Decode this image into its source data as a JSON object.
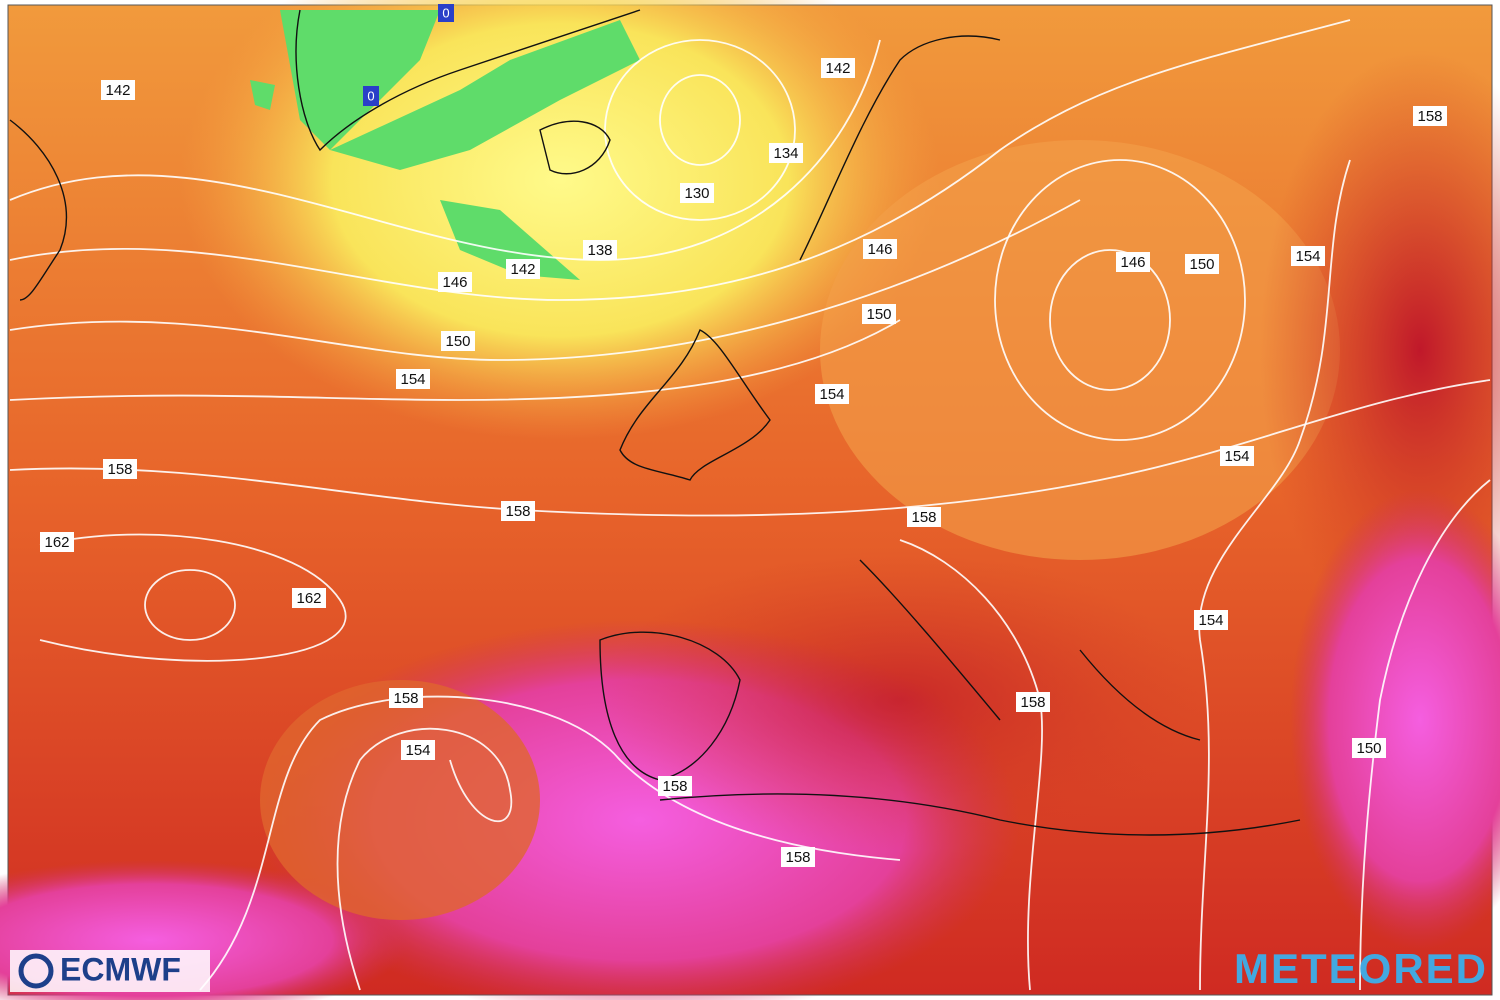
{
  "map": {
    "contour_labels": [
      142,
      142,
      158,
      134,
      130,
      146,
      138,
      142,
      146,
      146,
      150,
      154,
      150,
      150,
      154,
      154,
      154,
      158,
      158,
      158,
      162,
      162,
      154,
      158,
      158,
      154,
      150,
      158,
      158
    ],
    "low_markers": [
      "0",
      "0"
    ],
    "logo_left": "ECMWF",
    "logo_right": "METEORED"
  }
}
